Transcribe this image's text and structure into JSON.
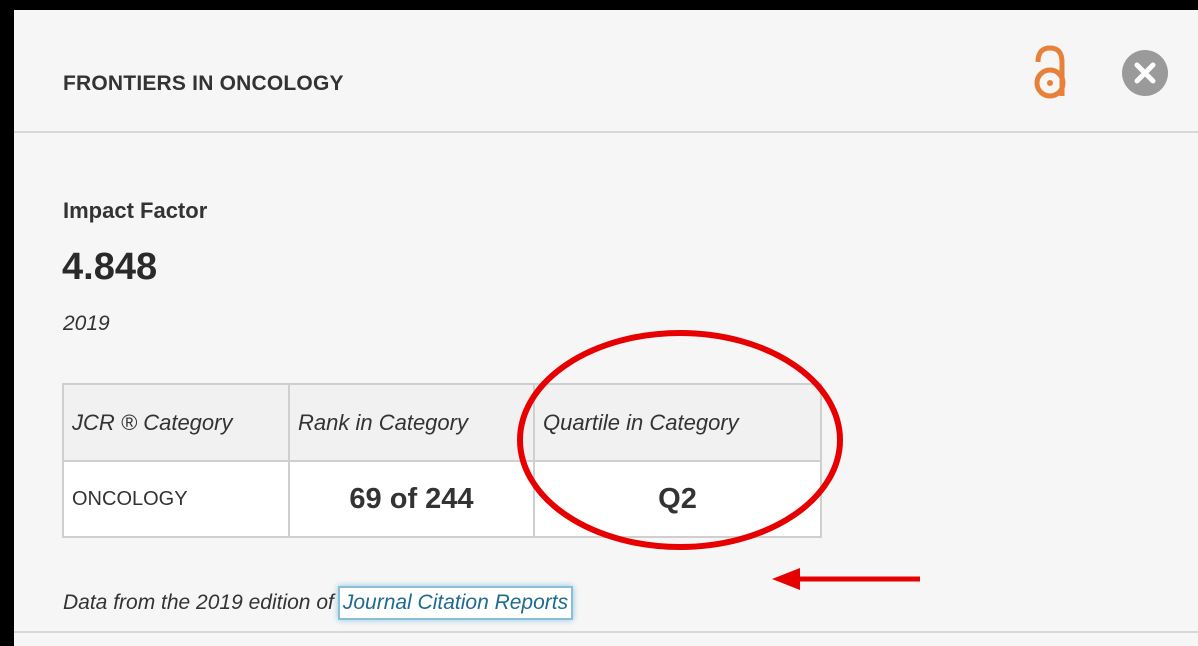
{
  "header": {
    "title": "FRONTIERS IN ONCOLOGY"
  },
  "impact_factor": {
    "label": "Impact Factor",
    "value": "4.848",
    "year": "2019"
  },
  "table": {
    "headers": [
      "JCR ® Category",
      "Rank in Category",
      "Quartile in Category"
    ],
    "rows": [
      [
        "ONCOLOGY",
        "69 of 244",
        "Q2"
      ]
    ]
  },
  "footer": {
    "text": "Data from the 2019 edition of",
    "link": "Journal Citation Reports"
  }
}
